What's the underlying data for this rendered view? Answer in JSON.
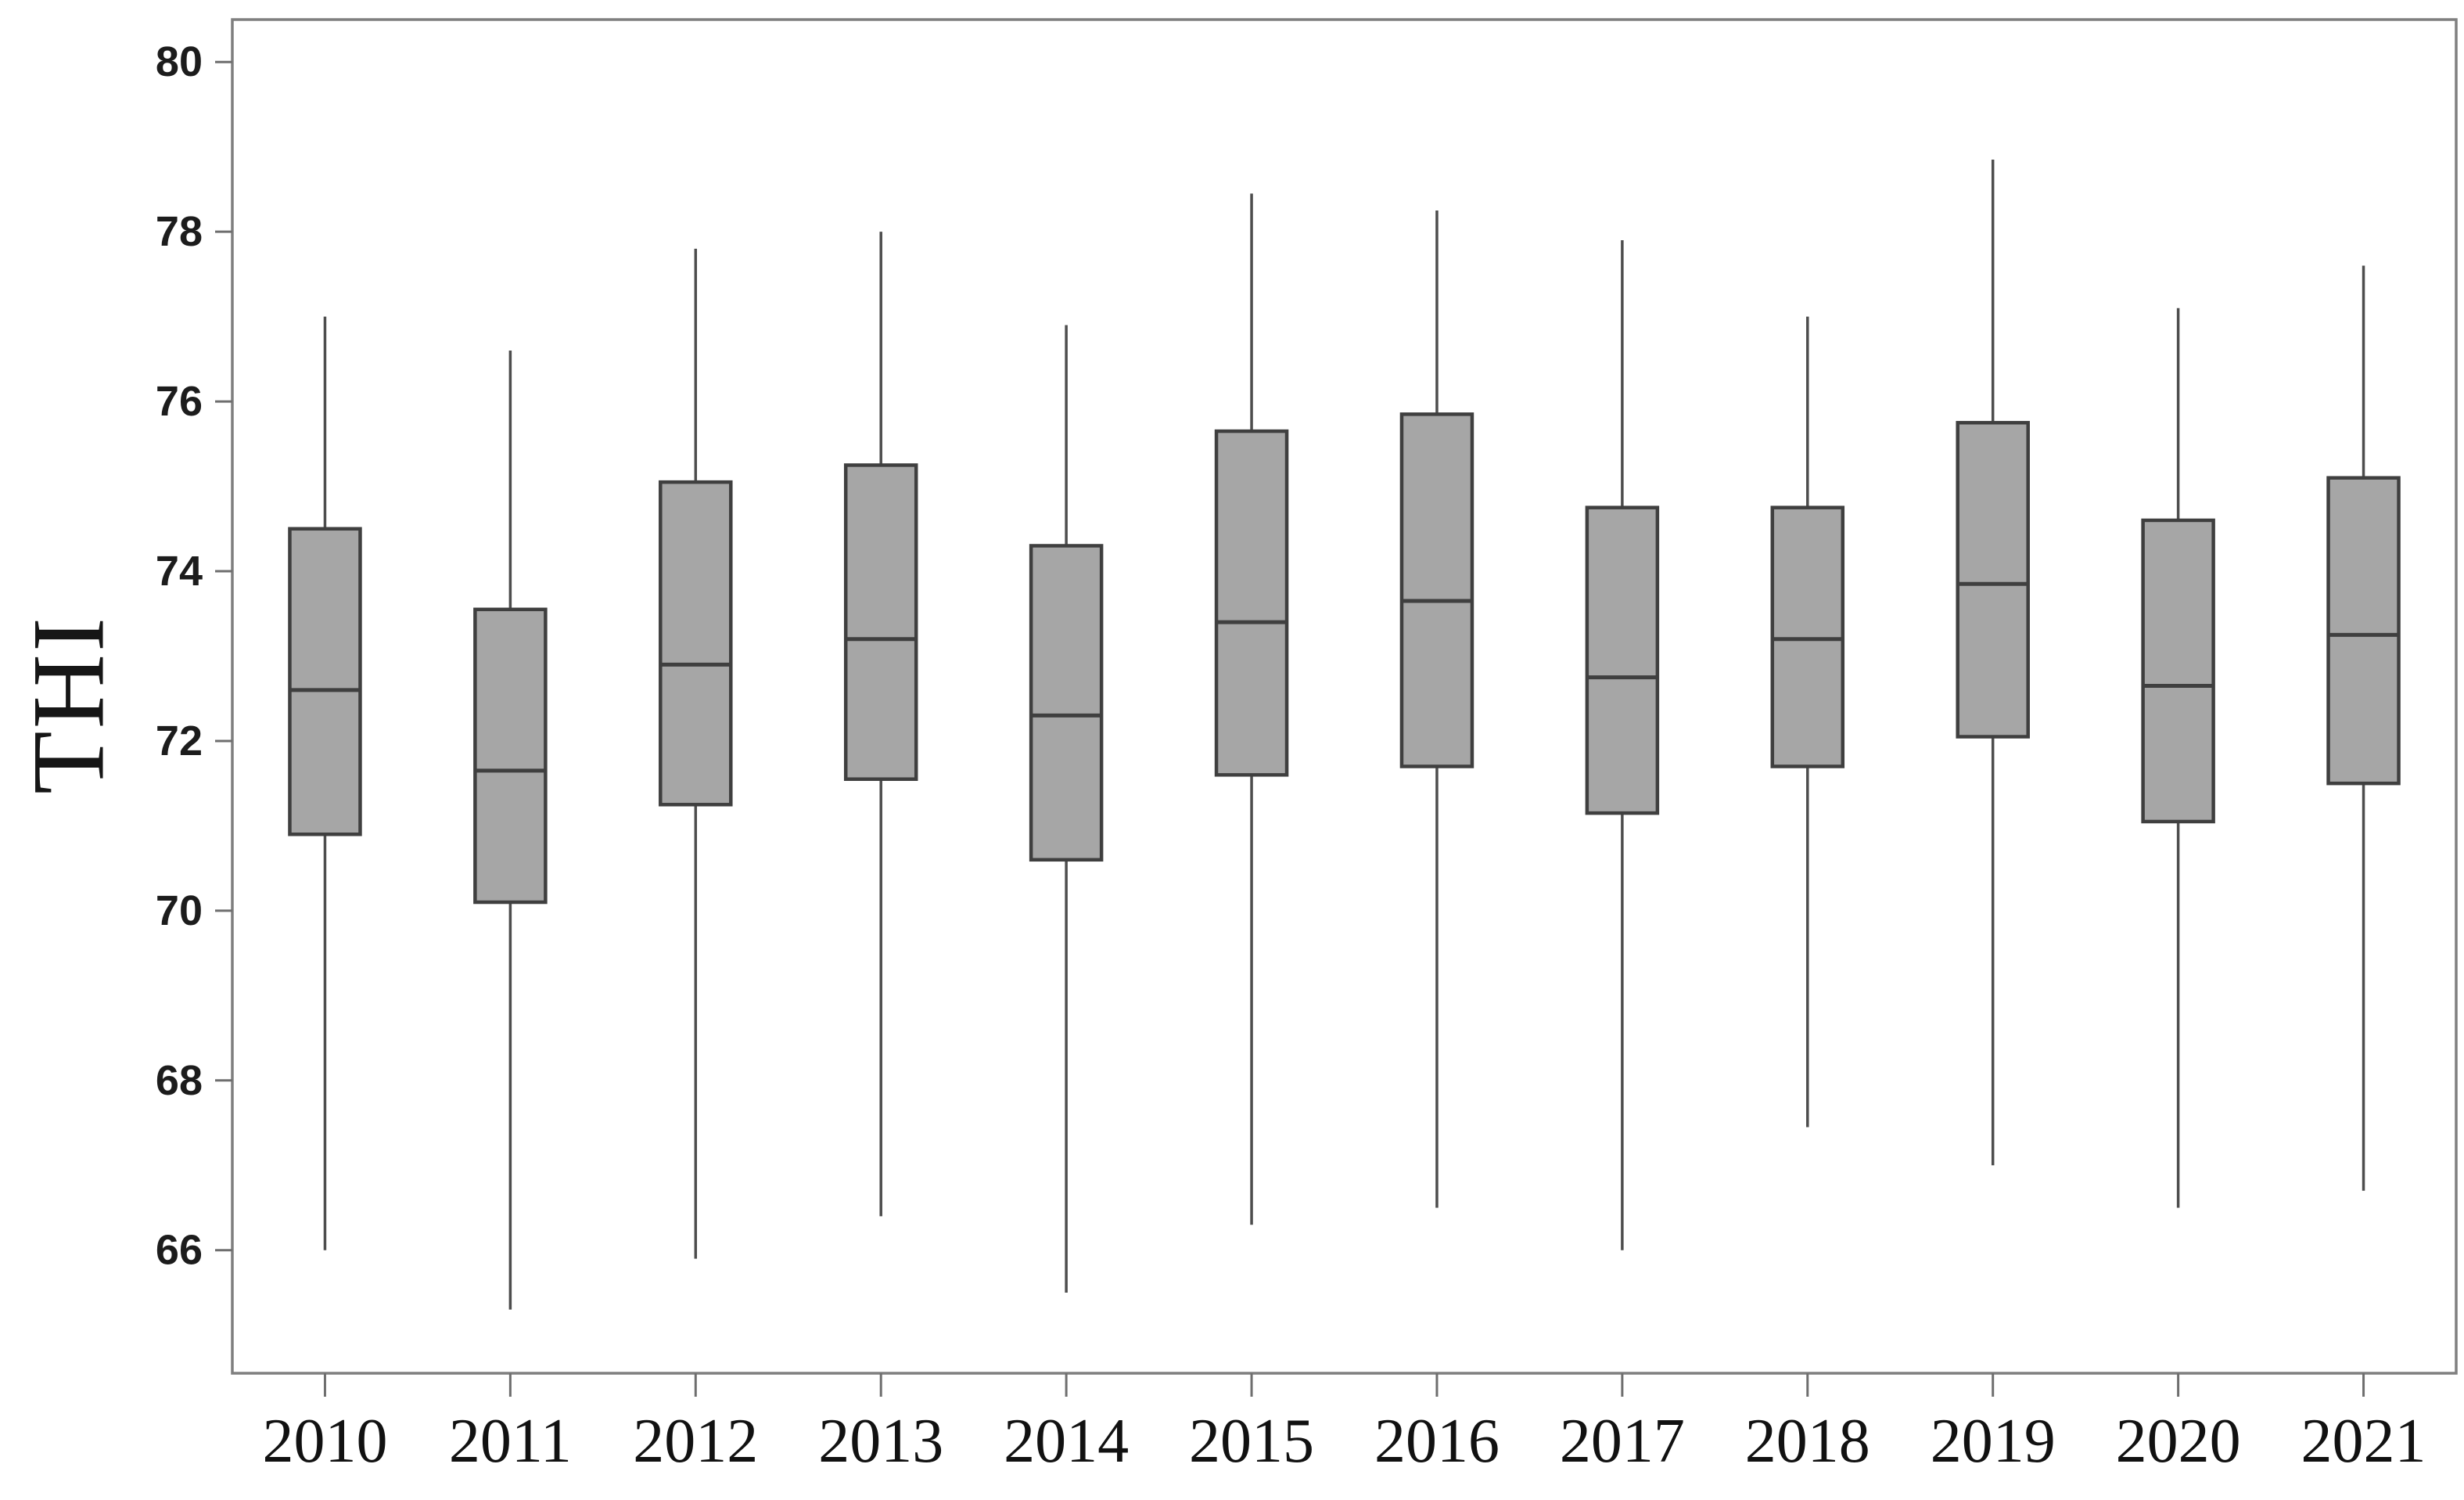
{
  "figure": {
    "ylabel": "THI"
  },
  "chart_data": {
    "type": "boxplot",
    "title": "",
    "xlabel": "",
    "ylabel": "THI",
    "categories": [
      "2010",
      "2011",
      "2012",
      "2013",
      "2014",
      "2015",
      "2016",
      "2017",
      "2018",
      "2019",
      "2020",
      "2021"
    ],
    "y_axis": {
      "min": 64.55,
      "max": 80.5,
      "tick_step": 2,
      "ticks": [
        80,
        78,
        76,
        74,
        72,
        70,
        68,
        66
      ]
    },
    "grid": false,
    "legend_position": "none",
    "series": [
      {
        "year": "2010",
        "whisker_low": 66.0,
        "q1": 70.9,
        "median": 72.6,
        "q3": 74.5,
        "whisker_high": 77.0
      },
      {
        "year": "2011",
        "whisker_low": 65.3,
        "q1": 70.1,
        "median": 71.65,
        "q3": 73.55,
        "whisker_high": 76.6
      },
      {
        "year": "2012",
        "whisker_low": 65.9,
        "q1": 71.25,
        "median": 72.9,
        "q3": 75.05,
        "whisker_high": 77.8
      },
      {
        "year": "2013",
        "whisker_low": 66.4,
        "q1": 71.55,
        "median": 73.2,
        "q3": 75.25,
        "whisker_high": 78.0
      },
      {
        "year": "2014",
        "whisker_low": 65.5,
        "q1": 70.6,
        "median": 72.3,
        "q3": 74.3,
        "whisker_high": 76.9
      },
      {
        "year": "2015",
        "whisker_low": 66.3,
        "q1": 71.6,
        "median": 73.4,
        "q3": 75.65,
        "whisker_high": 78.45
      },
      {
        "year": "2016",
        "whisker_low": 66.5,
        "q1": 71.7,
        "median": 73.65,
        "q3": 75.85,
        "whisker_high": 78.25
      },
      {
        "year": "2017",
        "whisker_low": 66.0,
        "q1": 71.15,
        "median": 72.75,
        "q3": 74.75,
        "whisker_high": 77.9
      },
      {
        "year": "2018",
        "whisker_low": 67.45,
        "q1": 71.7,
        "median": 73.2,
        "q3": 74.75,
        "whisker_high": 77.0
      },
      {
        "year": "2019",
        "whisker_low": 67.0,
        "q1": 72.05,
        "median": 73.85,
        "q3": 75.75,
        "whisker_high": 78.85
      },
      {
        "year": "2020",
        "whisker_low": 66.5,
        "q1": 71.05,
        "median": 72.65,
        "q3": 74.6,
        "whisker_high": 77.1
      },
      {
        "year": "2021",
        "whisker_low": 66.7,
        "q1": 71.5,
        "median": 73.25,
        "q3": 75.1,
        "whisker_high": 77.6
      }
    ],
    "colors": {
      "box_fill": "#a6a6a6",
      "box_border": "#3f3f3f",
      "median_line": "#3f3f3f",
      "whisker": "#4d4d4d",
      "frame": "#7f7f7f",
      "tick_mark": "#6e6e6e",
      "tick_text": "#1c1c1c",
      "background": "#ffffff"
    }
  }
}
